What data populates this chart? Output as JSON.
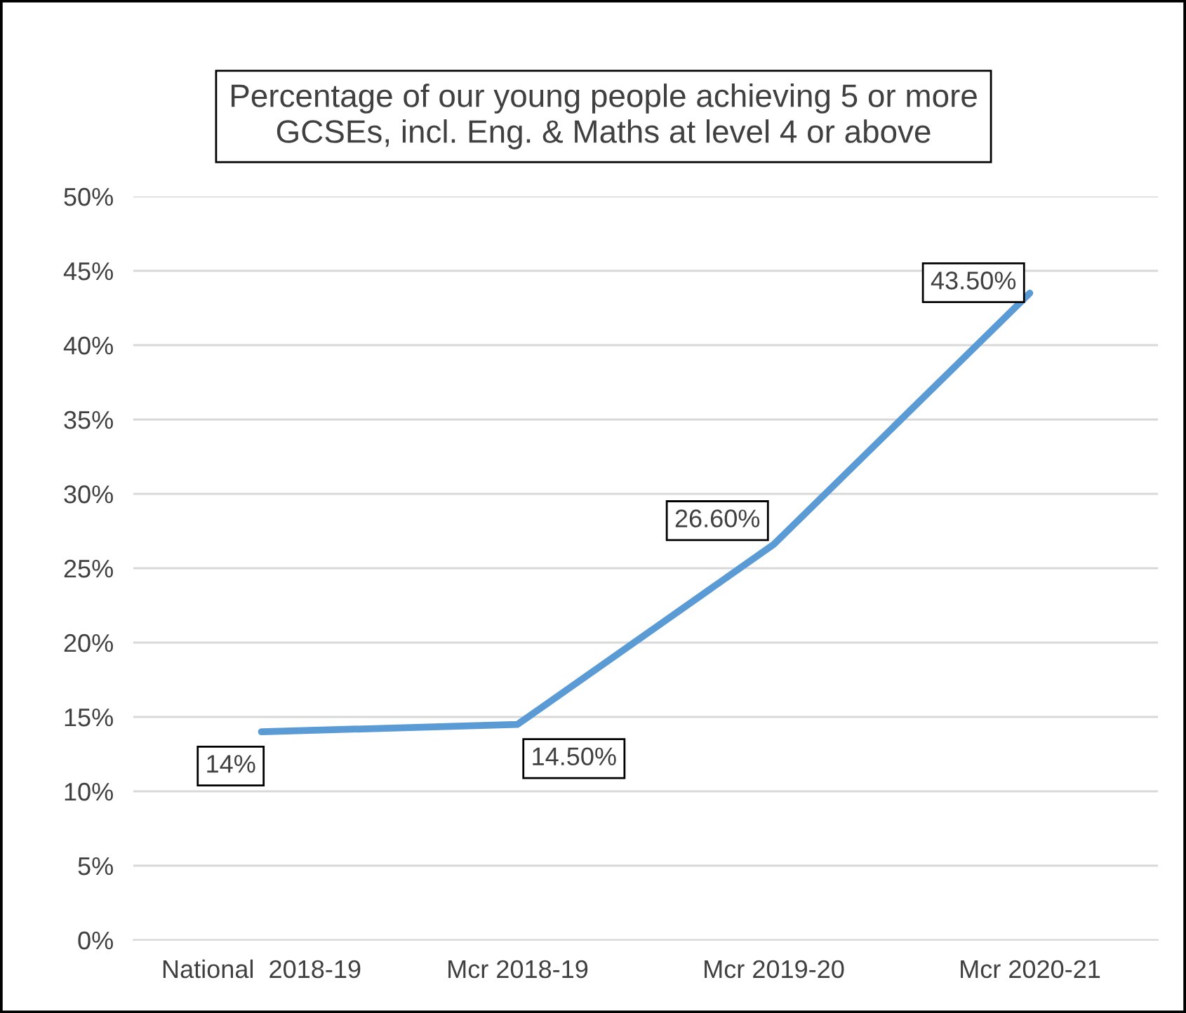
{
  "chart_data": {
    "type": "line",
    "title": "Percentage of our young people achieving 5 or more GCSEs, incl. Eng. & Maths at level 4 or above",
    "categories": [
      "National  2018-19",
      "Mcr 2018-19",
      "Mcr 2019-20",
      "Mcr 2020-21"
    ],
    "values": [
      14,
      14.5,
      26.6,
      43.5
    ],
    "value_labels": [
      "14%",
      "14.50%",
      "26.60%",
      "43.50%"
    ],
    "color": "#5b9bd5",
    "ylim": [
      0,
      50
    ],
    "yticks": [
      {
        "value": 0,
        "label": "0%"
      },
      {
        "value": 5,
        "label": "5%"
      },
      {
        "value": 10,
        "label": "10%"
      },
      {
        "value": 15,
        "label": "15%"
      },
      {
        "value": 20,
        "label": "20%"
      },
      {
        "value": 25,
        "label": "25%"
      },
      {
        "value": 30,
        "label": "30%"
      },
      {
        "value": 35,
        "label": "35%"
      },
      {
        "value": 40,
        "label": "40%"
      },
      {
        "value": 45,
        "label": "45%"
      },
      {
        "value": 50,
        "label": "50%"
      }
    ],
    "grid": "y",
    "legend": false,
    "marker": "none",
    "line_style": "solid"
  }
}
